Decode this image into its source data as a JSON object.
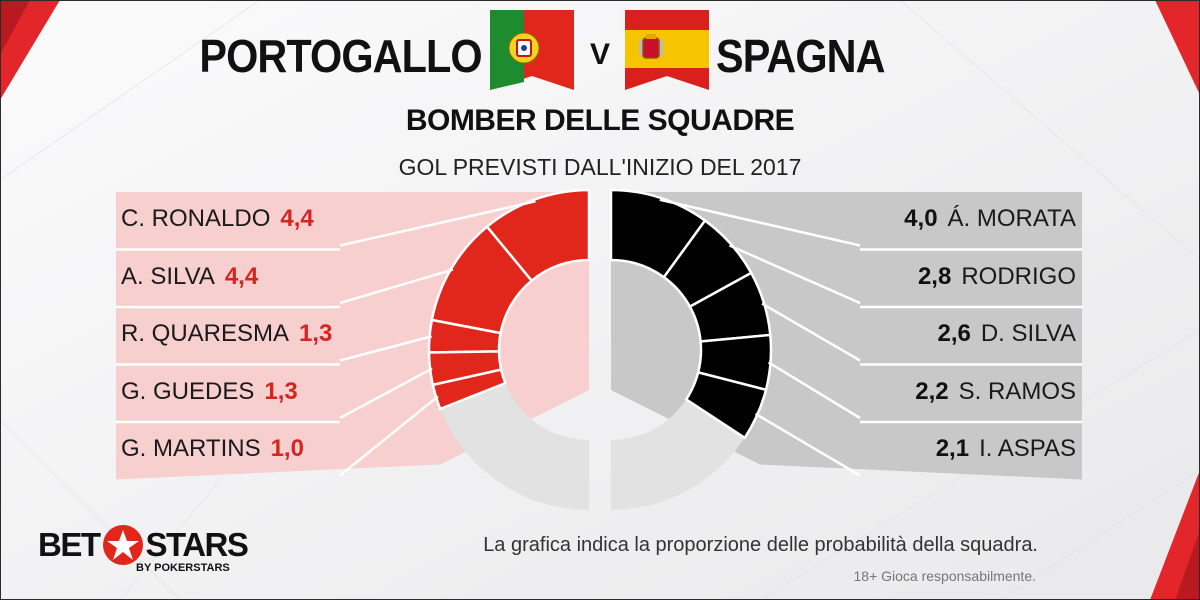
{
  "header": {
    "team_left": "PORTOGALLO",
    "versus": "V",
    "team_right": "SPAGNA",
    "subtitle": "BOMBER DELLE SQUADRE",
    "caption": "GOL PREVISTI DALL'INIZIO  DEL 2017"
  },
  "colors": {
    "portugal_accent": "#e1261c",
    "spain_accent": "#000000",
    "portugal_panel": "#f7cfcf",
    "spain_panel": "#c8c8c8",
    "ring_remainder": "#e2e2e2"
  },
  "chart_data": [
    {
      "type": "pie",
      "subtype": "half-donut",
      "team": "PORTOGALLO",
      "categories": [
        "C. RONALDO",
        "A. SILVA",
        "R. QUARESMA",
        "G. GUEDES",
        "G. MARTINS"
      ],
      "values": [
        4.4,
        4.4,
        1.3,
        1.3,
        1.0
      ],
      "value_labels": [
        "4,4",
        "4,4",
        "1,3",
        "1,3",
        "1,0"
      ]
    },
    {
      "type": "pie",
      "subtype": "half-donut",
      "team": "SPAGNA",
      "categories": [
        "Á. MORATA",
        "RODRIGO",
        "D. SILVA",
        "S. RAMOS",
        "I. ASPAS"
      ],
      "values": [
        4.0,
        2.8,
        2.6,
        2.2,
        2.1
      ],
      "value_labels": [
        "4,0",
        "2,8",
        "2,6",
        "2,2",
        "2,1"
      ]
    }
  ],
  "footer": {
    "logo_left": "BET",
    "logo_right": "STARS",
    "logo_sub": "BY POKERSTARS",
    "note": "La grafica indica la proporzione delle probabilità della squadra.",
    "disclaimer": "18+ Gioca responsabilmente."
  }
}
